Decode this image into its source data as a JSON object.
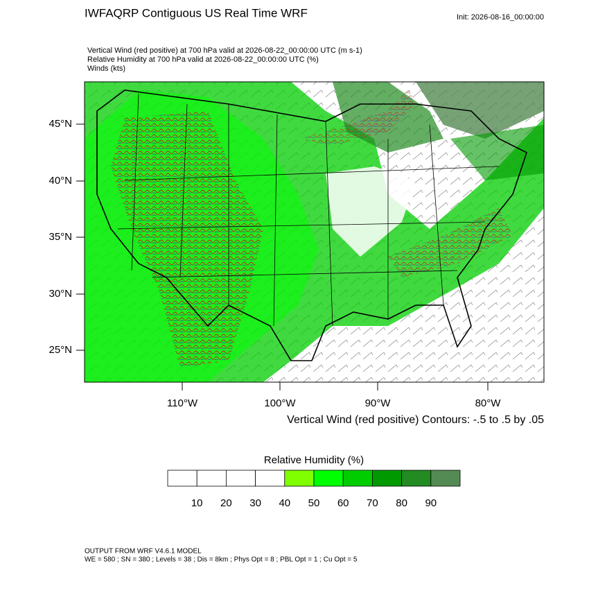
{
  "header": {
    "title": "IWFAQRP Contiguous US Real Time WRF",
    "init": "Init: 2026-08-16_00:00:00"
  },
  "fields": [
    "Vertical Wind (red positive) at 700 hPa valid at 2026-08-22_00:00:00 UTC   (m s-1)",
    "Relative Humidity at 700 hPa valid at 2026-08-22_00:00:00 UTC   (%)",
    "Winds   (kts)"
  ],
  "map": {
    "lat_labels": [
      "45°N",
      "40°N",
      "35°N",
      "30°N",
      "25°N"
    ],
    "lon_labels": [
      "110°W",
      "100°W",
      "90°W",
      "80°W"
    ],
    "contour_note": "Vertical Wind (red positive) Contours: -.5 to .5 by .05"
  },
  "colorbar": {
    "title": "Relative Humidity  (%)",
    "colors": [
      "#ffffff",
      "#ffffff",
      "#ffffff",
      "#ffffff",
      "#80ff00",
      "#00ff00",
      "#00cd00",
      "#009a00",
      "#228b22",
      "#548b54"
    ],
    "ticks": [
      10,
      20,
      30,
      40,
      50,
      60,
      70,
      80,
      90
    ]
  },
  "footer": [
    "OUTPUT FROM WRF V4.6.1 MODEL",
    "WE = 580 ; SN = 380 ; Levels = 38 ; Dis = 8km ; Phys Opt = 8 ; PBL Opt = 1 ; Cu Opt = 5"
  ]
}
